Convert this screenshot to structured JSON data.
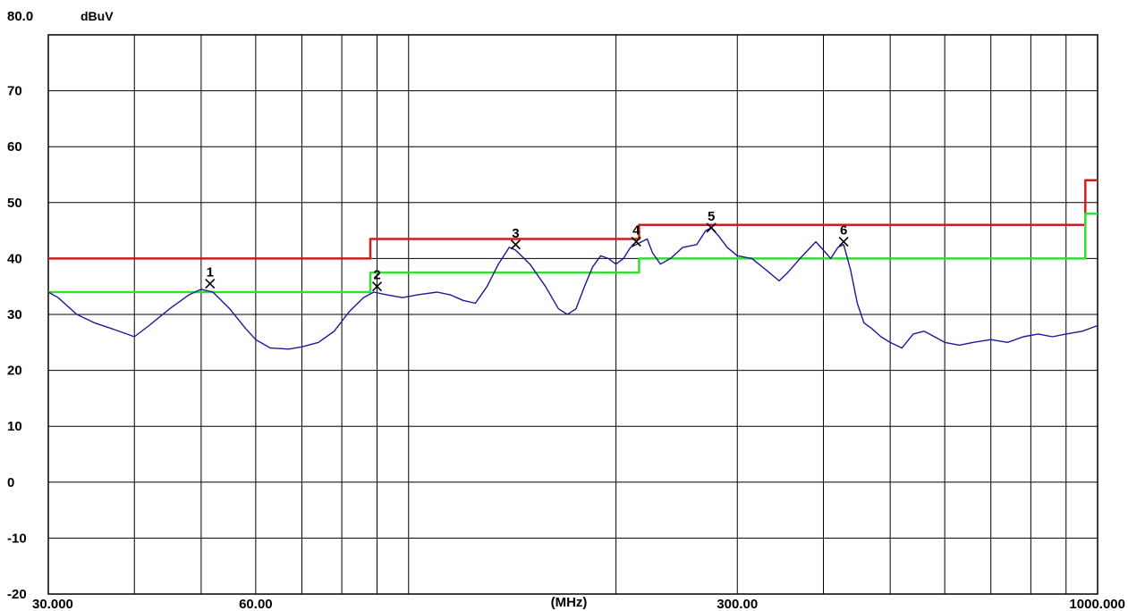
{
  "chart_data": {
    "type": "line",
    "ylabel": "dBuV",
    "xlabel": "(MHz)",
    "x_scale": "log",
    "xlim": [
      30,
      1000
    ],
    "ylim": [
      -20,
      80
    ],
    "y_ticks": [
      {
        "value": 80,
        "label": "80.0"
      },
      {
        "value": 70,
        "label": "70"
      },
      {
        "value": 60,
        "label": "60"
      },
      {
        "value": 50,
        "label": "50"
      },
      {
        "value": 40,
        "label": "40"
      },
      {
        "value": 30,
        "label": "30"
      },
      {
        "value": 20,
        "label": "20"
      },
      {
        "value": 10,
        "label": "10"
      },
      {
        "value": 0,
        "label": "0"
      },
      {
        "value": -10,
        "label": "-10"
      },
      {
        "value": -20,
        "label": "-20"
      }
    ],
    "x_ticks": [
      {
        "value": 30,
        "label": "30.000"
      },
      {
        "value": 60,
        "label": "60.00"
      },
      {
        "value": 300,
        "label": "300.00"
      },
      {
        "value": 1000,
        "label": "1000.000"
      }
    ],
    "x_gridlines": [
      40,
      50,
      60,
      70,
      80,
      90,
      100,
      200,
      300,
      400,
      500,
      600,
      700,
      800,
      900
    ],
    "grid": true,
    "colors": {
      "limit_high": "#cc1f1f",
      "limit_low": "#33dd33",
      "trace": "#1a1a99",
      "grid": "#000000",
      "markers": "#000000"
    },
    "series": [
      {
        "key": "limit_high",
        "points": [
          [
            30,
            40
          ],
          [
            88,
            40
          ],
          [
            88,
            43.5
          ],
          [
            216,
            43.5
          ],
          [
            216,
            46
          ],
          [
            960,
            46
          ],
          [
            960,
            54
          ],
          [
            1000,
            54
          ]
        ]
      },
      {
        "key": "limit_low",
        "points": [
          [
            30,
            34
          ],
          [
            88,
            34
          ],
          [
            88,
            37.5
          ],
          [
            216,
            37.5
          ],
          [
            216,
            40
          ],
          [
            960,
            40
          ],
          [
            960,
            48
          ],
          [
            1000,
            48
          ]
        ]
      },
      {
        "key": "trace",
        "points": [
          [
            30,
            34
          ],
          [
            31,
            33
          ],
          [
            33,
            30
          ],
          [
            35,
            28.5
          ],
          [
            37,
            27.5
          ],
          [
            39,
            26.5
          ],
          [
            40,
            26
          ],
          [
            42,
            28
          ],
          [
            45,
            31
          ],
          [
            48,
            33.5
          ],
          [
            50,
            34.5
          ],
          [
            52,
            34
          ],
          [
            55,
            31
          ],
          [
            58,
            27.5
          ],
          [
            60,
            25.5
          ],
          [
            63,
            24
          ],
          [
            67,
            23.8
          ],
          [
            70,
            24.2
          ],
          [
            74,
            25
          ],
          [
            78,
            27
          ],
          [
            82,
            30.5
          ],
          [
            86,
            33
          ],
          [
            89,
            34
          ],
          [
            93,
            33.5
          ],
          [
            98,
            33
          ],
          [
            103,
            33.5
          ],
          [
            110,
            34
          ],
          [
            115,
            33.5
          ],
          [
            120,
            32.5
          ],
          [
            125,
            32
          ],
          [
            130,
            35
          ],
          [
            135,
            39
          ],
          [
            140,
            42
          ],
          [
            143,
            41.5
          ],
          [
            150,
            39
          ],
          [
            158,
            35
          ],
          [
            165,
            31
          ],
          [
            170,
            30
          ],
          [
            175,
            31
          ],
          [
            180,
            35
          ],
          [
            185,
            38.5
          ],
          [
            190,
            40.5
          ],
          [
            195,
            40
          ],
          [
            200,
            39
          ],
          [
            205,
            40
          ],
          [
            210,
            42
          ],
          [
            214,
            42.5
          ],
          [
            218,
            43
          ],
          [
            222,
            43.5
          ],
          [
            226,
            41
          ],
          [
            232,
            39
          ],
          [
            240,
            40
          ],
          [
            250,
            42
          ],
          [
            262,
            42.5
          ],
          [
            270,
            45
          ],
          [
            275,
            45.5
          ],
          [
            282,
            44
          ],
          [
            290,
            42
          ],
          [
            300,
            40.5
          ],
          [
            315,
            40
          ],
          [
            330,
            38
          ],
          [
            345,
            36
          ],
          [
            355,
            37.5
          ],
          [
            370,
            40
          ],
          [
            390,
            43
          ],
          [
            400,
            41.5
          ],
          [
            410,
            40
          ],
          [
            420,
            42
          ],
          [
            428,
            42.5
          ],
          [
            438,
            38
          ],
          [
            448,
            32
          ],
          [
            458,
            28.5
          ],
          [
            470,
            27.5
          ],
          [
            485,
            26
          ],
          [
            500,
            25
          ],
          [
            520,
            24
          ],
          [
            540,
            26.5
          ],
          [
            560,
            27
          ],
          [
            580,
            26
          ],
          [
            600,
            25
          ],
          [
            630,
            24.5
          ],
          [
            660,
            25
          ],
          [
            700,
            25.5
          ],
          [
            740,
            25
          ],
          [
            780,
            26
          ],
          [
            820,
            26.5
          ],
          [
            860,
            26
          ],
          [
            900,
            26.5
          ],
          [
            950,
            27
          ],
          [
            1000,
            28
          ]
        ]
      }
    ],
    "markers": [
      {
        "label": "1",
        "x": 51.5,
        "y": 35.5
      },
      {
        "label": "2",
        "x": 90,
        "y": 35
      },
      {
        "label": "3",
        "x": 143,
        "y": 42.5
      },
      {
        "label": "4",
        "x": 214,
        "y": 43
      },
      {
        "label": "5",
        "x": 275,
        "y": 45.5
      },
      {
        "label": "6",
        "x": 428,
        "y": 43
      }
    ]
  }
}
